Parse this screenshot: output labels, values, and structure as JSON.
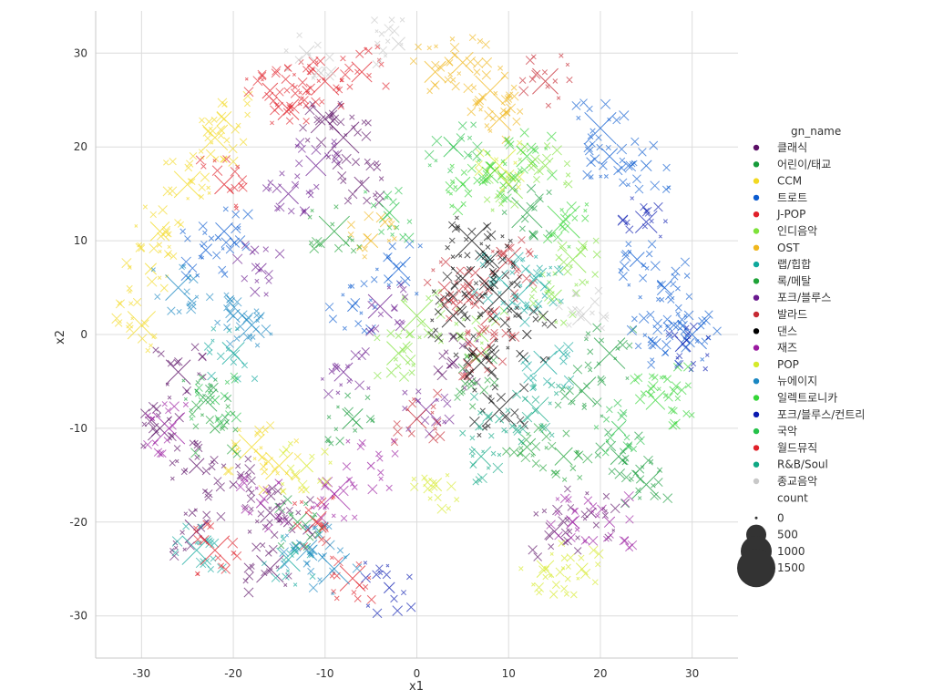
{
  "chart_data": {
    "type": "scatter",
    "xlabel": "x1",
    "ylabel": "x2",
    "xlim": [
      -35,
      35
    ],
    "ylim": [
      -34.5,
      34.5
    ],
    "xticks": [
      -30,
      -20,
      -10,
      0,
      10,
      20,
      30
    ],
    "yticks": [
      -30,
      -20,
      -10,
      0,
      10,
      20,
      30
    ],
    "grid": true,
    "legend_placement": "right",
    "hue_title": "gn_name",
    "size_title": "count",
    "size_legend": [
      0,
      500,
      1000,
      1500
    ],
    "series": [
      {
        "name": "클래식",
        "color": "#5b0f66",
        "points": [
          [
            -28,
            -10
          ],
          [
            -24,
            -14
          ],
          [
            -20,
            -16
          ],
          [
            -16,
            -19
          ],
          [
            -14,
            -20
          ],
          [
            -8,
            21
          ],
          [
            -10,
            23
          ],
          [
            -26,
            -4
          ],
          [
            -24,
            -21
          ],
          [
            -16,
            -25
          ],
          [
            15,
            -21
          ],
          [
            19,
            -19
          ],
          [
            -6,
            16
          ],
          [
            4,
            -3
          ]
        ]
      },
      {
        "name": "어린이/태교",
        "color": "#169b3a",
        "points": [
          [
            22,
            -13
          ],
          [
            25,
            -16
          ],
          [
            18,
            -6
          ],
          [
            -23,
            -7
          ],
          [
            -7,
            -9
          ],
          [
            -13,
            -20
          ],
          [
            21,
            -2
          ],
          [
            12,
            13
          ]
        ]
      },
      {
        "name": "CCM",
        "color": "#f2d922",
        "points": [
          [
            -28,
            11
          ],
          [
            -25,
            16
          ],
          [
            -22,
            21
          ],
          [
            -21,
            23
          ],
          [
            -29,
            7
          ],
          [
            -30,
            1
          ],
          [
            -18,
            -12
          ],
          [
            -15,
            -14
          ]
        ]
      },
      {
        "name": "트로트",
        "color": "#0b5bd0",
        "points": [
          [
            26,
            -1
          ],
          [
            28,
            1
          ],
          [
            30,
            0
          ],
          [
            27,
            5
          ],
          [
            24,
            8
          ],
          [
            21,
            19
          ],
          [
            25,
            18
          ],
          [
            20,
            22
          ],
          [
            -23,
            9
          ],
          [
            -21,
            11
          ],
          [
            -7,
            3
          ],
          [
            -2,
            7
          ]
        ]
      },
      {
        "name": "J-POP",
        "color": "#e0202a",
        "points": [
          [
            -14,
            24
          ],
          [
            -10,
            27
          ],
          [
            -6,
            28
          ],
          [
            -11,
            -20
          ],
          [
            -7,
            -26
          ],
          [
            -21,
            16
          ]
        ]
      },
      {
        "name": "인디음악",
        "color": "#7ee23b",
        "points": [
          [
            15,
            4
          ],
          [
            17,
            8
          ],
          [
            10,
            16
          ],
          [
            14,
            18
          ],
          [
            7,
            0
          ],
          [
            -2,
            -2
          ],
          [
            0,
            2
          ]
        ]
      },
      {
        "name": "OST",
        "color": "#f0b71e",
        "points": [
          [
            2,
            28
          ],
          [
            5,
            29
          ],
          [
            8,
            26
          ],
          [
            9,
            23
          ],
          [
            -5,
            10
          ]
        ]
      },
      {
        "name": "랩/힙합",
        "color": "#0fa89c",
        "points": [
          [
            11,
            4
          ],
          [
            13,
            6
          ],
          [
            9,
            6
          ],
          [
            14,
            -3
          ],
          [
            -24,
            -23
          ],
          [
            -14,
            -24
          ],
          [
            -20,
            -2
          ]
        ]
      },
      {
        "name": "록/메탈",
        "color": "#1fa338",
        "points": [
          [
            12,
            -12
          ],
          [
            16,
            -13
          ],
          [
            6,
            -5
          ],
          [
            -22,
            -10
          ],
          [
            -9,
            11
          ]
        ]
      },
      {
        "name": "포크/블루스",
        "color": "#6a1a8f",
        "points": [
          [
            -11,
            18
          ],
          [
            -14,
            15
          ],
          [
            -17,
            7
          ],
          [
            -8,
            -4
          ],
          [
            -4,
            3
          ],
          [
            1,
            -8
          ]
        ]
      },
      {
        "name": "발라드",
        "color": "#c62a33",
        "points": [
          [
            6,
            4
          ],
          [
            8,
            2
          ],
          [
            3,
            5
          ],
          [
            7,
            -2
          ],
          [
            0,
            -9
          ],
          [
            14,
            27
          ],
          [
            10,
            8
          ]
        ]
      },
      {
        "name": "댄스",
        "color": "#000000",
        "points": [
          [
            8,
            8
          ],
          [
            5,
            6
          ],
          [
            9,
            4
          ],
          [
            6,
            10
          ],
          [
            4,
            2
          ],
          [
            9,
            -8
          ],
          [
            12,
            0
          ],
          [
            7,
            -3
          ]
        ]
      },
      {
        "name": "재즈",
        "color": "#9a1aa0",
        "points": [
          [
            -27,
            -10
          ],
          [
            -17,
            -18
          ],
          [
            -9,
            -17
          ],
          [
            17,
            -20
          ],
          [
            21,
            -20
          ],
          [
            -5,
            -14
          ]
        ]
      },
      {
        "name": "POP",
        "color": "#d5ea2a",
        "points": [
          [
            14,
            -25
          ],
          [
            18,
            -25
          ],
          [
            -12,
            -14
          ],
          [
            2,
            -16
          ],
          [
            9,
            18
          ]
        ]
      },
      {
        "name": "뉴에이지",
        "color": "#1a87c2",
        "points": [
          [
            -20,
            2
          ],
          [
            -18,
            1
          ],
          [
            -12,
            -23
          ],
          [
            -26,
            5
          ],
          [
            -9,
            -25
          ]
        ]
      },
      {
        "name": "일렉트로니카",
        "color": "#35d637",
        "points": [
          [
            8,
            17
          ],
          [
            12,
            19
          ],
          [
            5,
            16
          ],
          [
            16,
            12
          ],
          [
            26,
            -7
          ],
          [
            28,
            -6
          ]
        ]
      },
      {
        "name": "포크/블루스/컨트리",
        "color": "#0b1bb0",
        "points": [
          [
            29,
            -1
          ],
          [
            25,
            12
          ],
          [
            -3,
            -27
          ]
        ]
      },
      {
        "name": "국악",
        "color": "#26c24a",
        "points": [
          [
            22,
            -10
          ],
          [
            4,
            20
          ],
          [
            -3,
            13
          ],
          [
            -22,
            -7
          ]
        ]
      },
      {
        "name": "월드뮤직",
        "color": "#e0212a",
        "points": [
          [
            -16,
            26
          ],
          [
            -12,
            26
          ],
          [
            -22,
            -23
          ]
        ]
      },
      {
        "name": "R&B/Soul",
        "color": "#10a884",
        "points": [
          [
            9,
            -9
          ],
          [
            13,
            -8
          ],
          [
            7,
            -13
          ]
        ]
      },
      {
        "name": "종교음악",
        "color": "#c8c8c8",
        "points": [
          [
            -2,
            31
          ],
          [
            -12,
            30
          ],
          [
            18,
            2
          ]
        ]
      }
    ]
  }
}
